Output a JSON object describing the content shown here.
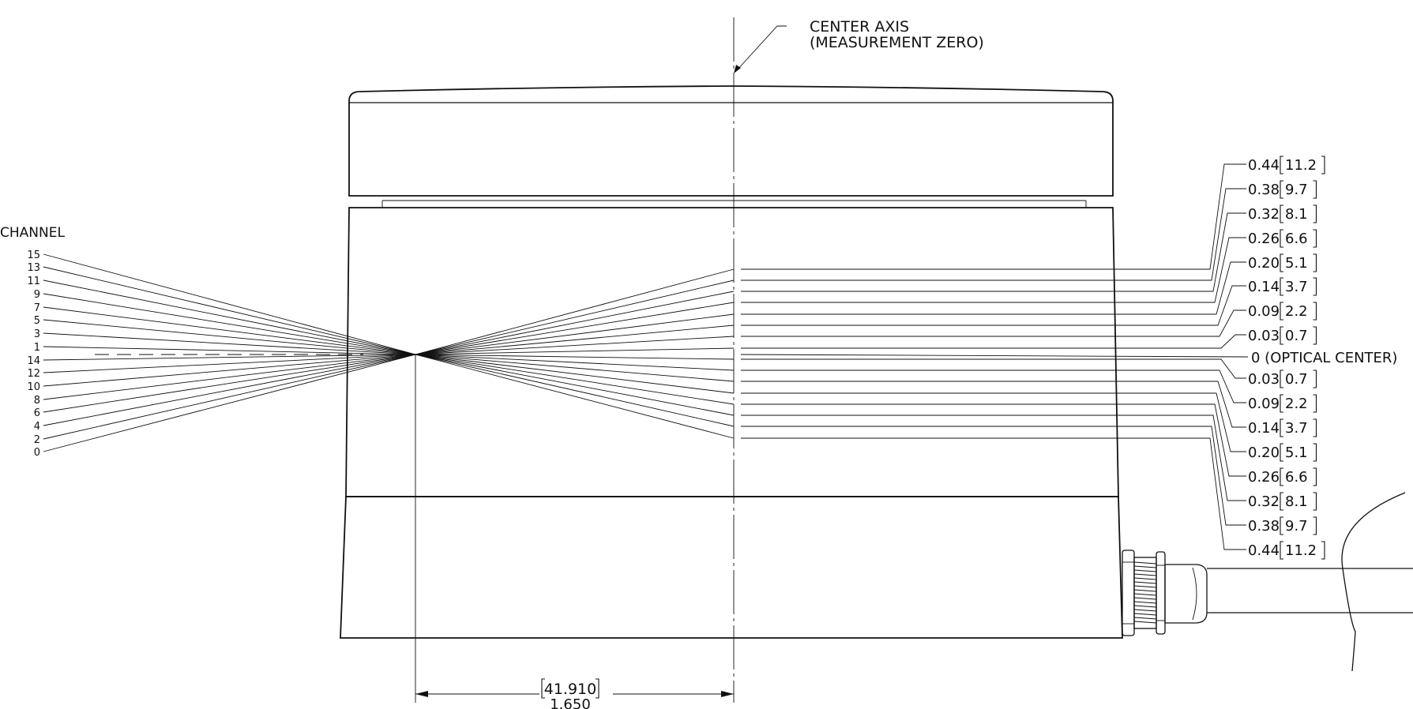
{
  "center_axis": {
    "line1": "CENTER AXIS",
    "line2": "(MEASUREMENT ZERO)"
  },
  "channel_heading": "CHANNEL",
  "channels_upper": [
    "15",
    "13",
    "11",
    "9",
    "7",
    "5",
    "3",
    "1"
  ],
  "channels_lower": [
    "14",
    "12",
    "10",
    "8",
    "6",
    "4",
    "2",
    "0"
  ],
  "offsets_upper": [
    {
      "inch": "0.44",
      "mm": "11.2"
    },
    {
      "inch": "0.38",
      "mm": "9.7"
    },
    {
      "inch": "0.32",
      "mm": "8.1"
    },
    {
      "inch": "0.26",
      "mm": "6.6"
    },
    {
      "inch": "0.20",
      "mm": "5.1"
    },
    {
      "inch": "0.14",
      "mm": "3.7"
    },
    {
      "inch": "0.09",
      "mm": "2.2"
    },
    {
      "inch": "0.03",
      "mm": "0.7"
    }
  ],
  "optical_center_label": "0 (OPTICAL CENTER)",
  "offsets_lower": [
    {
      "inch": "0.03",
      "mm": "0.7"
    },
    {
      "inch": "0.09",
      "mm": "2.2"
    },
    {
      "inch": "0.14",
      "mm": "3.7"
    },
    {
      "inch": "0.20",
      "mm": "5.1"
    },
    {
      "inch": "0.26",
      "mm": "6.6"
    },
    {
      "inch": "0.32",
      "mm": "8.1"
    },
    {
      "inch": "0.38",
      "mm": "9.7"
    },
    {
      "inch": "0.44",
      "mm": "11.2"
    }
  ],
  "dimension": {
    "mm": "41.910",
    "inch": "1.650"
  }
}
